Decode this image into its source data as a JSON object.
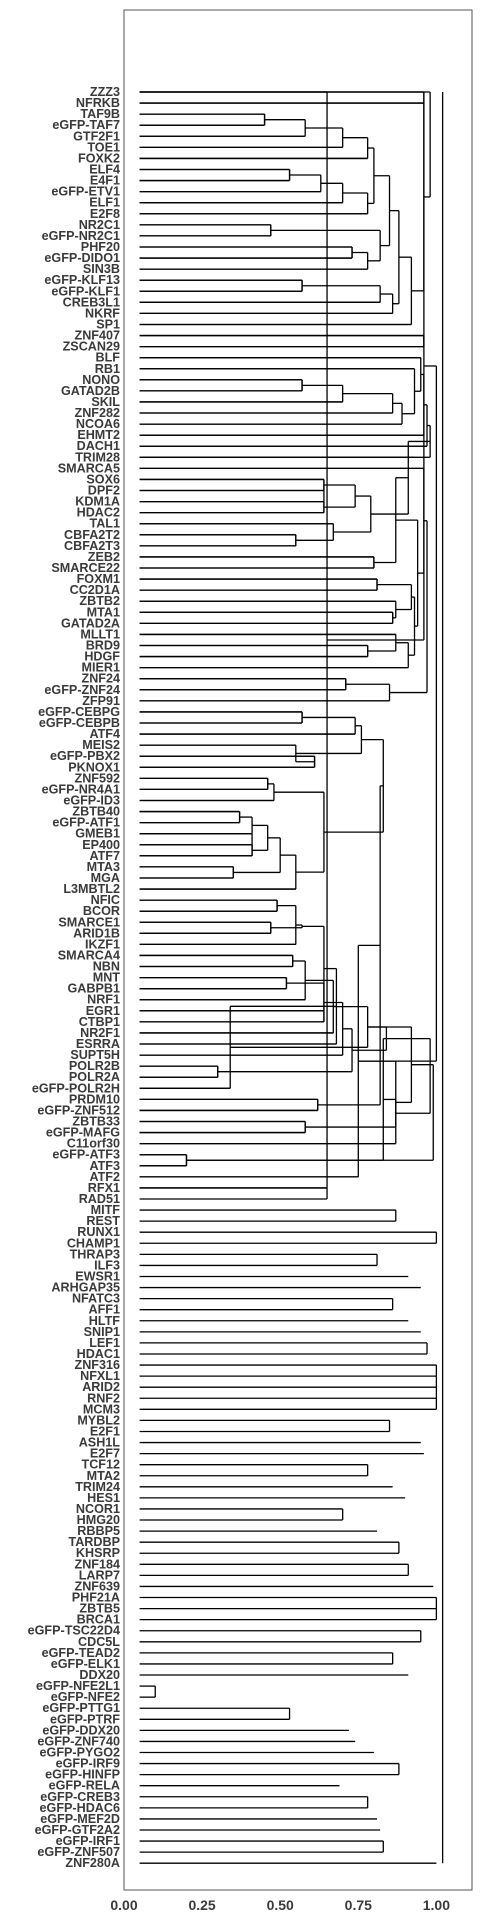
{
  "chart_data": {
    "type": "dendrogram",
    "orientation": "horizontal",
    "xlim": [
      0,
      1.05
    ],
    "x_ticks": [
      0.0,
      0.25,
      0.5,
      0.75,
      1.0
    ],
    "x_tick_labels": [
      "0.00",
      "0.25",
      "0.50",
      "0.75",
      "1.00"
    ],
    "grid": false,
    "leaves": [
      "ZZZ3",
      "NFRKB",
      "TAF9B",
      "eGFP-TAF7",
      "GTF2F1",
      "TOE1",
      "FOXK2",
      "ELF4",
      "E4F1",
      "eGFP-ETV1",
      "ELF1",
      "E2F8",
      "NR2C1",
      "eGFP-NR2C1",
      "PHF20",
      "eGFP-DIDO1",
      "SIN3B",
      "eGFP-KLF13",
      "eGFP-KLF1",
      "CREB3L1",
      "NKRF",
      "SP1",
      "ZNF407",
      "ZSCAN29",
      "BLF",
      "RB1",
      "NONO",
      "GATAD2B",
      "SKIL",
      "ZNF282",
      "NCOA6",
      "EHMT2",
      "DACH1",
      "TRIM28",
      "SMARCA5",
      "SOX6",
      "DPF2",
      "KDM1A",
      "HDAC2",
      "TAL1",
      "CBFA2T2",
      "CBFA2T3",
      "ZEB2",
      "SMARCE22",
      "FOXM1",
      "CC2D1A",
      "ZBTB2",
      "MTA1",
      "GATAD2A",
      "MLLT1",
      "BRD9",
      "HDGF",
      "MIER1",
      "ZNF24",
      "eGFP-ZNF24",
      "ZFP91",
      "eGFP-CEBPG",
      "eGFP-CEBPB",
      "ATF4",
      "MEIS2",
      "eGFP-PBX2",
      "PKNOX1",
      "ZNF592",
      "eGFP-NR4A1",
      "eGFP-ID3",
      "ZBTB40",
      "eGFP-ATF1",
      "GMEB1",
      "EP400",
      "ATF7",
      "MTA3",
      "MGA",
      "L3MBTL2",
      "NFIC",
      "BCOR",
      "SMARCE1",
      "ARID1B",
      "IKZF1",
      "SMARCA4",
      "NBN",
      "MNT",
      "GABPB1",
      "NRF1",
      "EGR1",
      "CTBP1",
      "NR2F1",
      "ESRRA",
      "SUPT5H",
      "POLR2B",
      "POLR2A",
      "eGFP-POLR2H",
      "PRDM10",
      "eGFP-ZNF512",
      "ZBTB33",
      "eGFP-MAFG",
      "C11orf30",
      "eGFP-ATF3",
      "ATF3",
      "ATF2",
      "RFX1",
      "RAD51",
      "MITF",
      "REST",
      "RUNX1",
      "CHAMP1",
      "THRAP3",
      "ILF3",
      "EWSR1",
      "ARHGAP35",
      "NFATC3",
      "AFF1",
      "HLTF",
      "SNIP1",
      "LEF1",
      "HDAC1",
      "ZNF316",
      "NFXL1",
      "ARID2",
      "RNF2",
      "MCM3",
      "MYBL2",
      "E2F1",
      "ASH1L",
      "E2F7",
      "TCF12",
      "MTA2",
      "TRIM24",
      "HES1",
      "NCOR1",
      "HMG20",
      "RBBP5",
      "TARDBP",
      "KHSRP",
      "ZNF184",
      "LARP7",
      "ZNF639",
      "PHF21A",
      "ZBTB5",
      "BRCA1",
      "eGFP-TSC22D4",
      "CDC5L",
      "eGFP-TEAD2",
      "eGFP-ELK1",
      "DDX20",
      "eGFP-NFE2L1",
      "eGFP-NFE2",
      "eGFP-PTTG1",
      "eGFP-PTRF",
      "eGFP-DDX20",
      "eGFP-ZNF740",
      "eGFP-PYGO2",
      "eGFP-IRF9",
      "eGFP-HINFP",
      "eGFP-RELA",
      "eGFP-CREB3",
      "eGFP-HDAC6",
      "eGFP-MEF2D",
      "eGFP-GTF2A2",
      "eGFP-IRF1",
      "eGFP-ZNF507",
      "ZNF280A"
    ],
    "merges": [
      [
        2,
        3,
        0.45
      ],
      [
        101,
        4,
        0.58
      ],
      [
        102,
        5,
        0.7
      ],
      [
        103,
        6,
        0.78
      ],
      [
        7,
        8,
        0.53
      ],
      [
        105,
        9,
        0.63
      ],
      [
        106,
        10,
        0.7
      ],
      [
        107,
        11,
        0.78
      ],
      [
        104,
        108,
        0.8
      ],
      [
        12,
        13,
        0.47
      ],
      [
        14,
        15,
        0.73
      ],
      [
        111,
        16,
        0.78
      ],
      [
        110,
        112,
        0.82
      ],
      [
        109,
        113,
        0.85
      ],
      [
        17,
        18,
        0.57
      ],
      [
        115,
        19,
        0.82
      ],
      [
        116,
        20,
        0.86
      ],
      [
        114,
        117,
        0.88
      ],
      [
        118,
        21,
        0.92
      ],
      [
        1,
        119,
        0.96
      ],
      [
        0,
        120,
        0.98
      ],
      [
        22,
        23,
        0.96
      ],
      [
        26,
        27,
        0.57
      ],
      [
        123,
        28,
        0.7
      ],
      [
        124,
        29,
        0.86
      ],
      [
        125,
        30,
        0.89
      ],
      [
        25,
        126,
        0.93
      ],
      [
        24,
        127,
        0.95
      ],
      [
        128,
        31,
        0.96
      ],
      [
        129,
        32,
        0.97
      ],
      [
        130,
        33,
        0.98
      ],
      [
        35,
        36,
        0.64
      ],
      [
        37,
        38,
        0.64
      ],
      [
        132,
        133,
        0.74
      ],
      [
        40,
        41,
        0.55
      ],
      [
        39,
        135,
        0.67
      ],
      [
        134,
        136,
        0.79
      ],
      [
        131,
        137,
        0.91
      ],
      [
        42,
        43,
        0.8
      ],
      [
        138,
        139,
        0.87
      ],
      [
        44,
        45,
        0.81
      ],
      [
        47,
        48,
        0.86
      ],
      [
        46,
        142,
        0.87
      ],
      [
        141,
        143,
        0.92
      ],
      [
        50,
        51,
        0.78
      ],
      [
        49,
        145,
        0.87
      ],
      [
        146,
        52,
        0.91
      ],
      [
        144,
        147,
        0.93
      ],
      [
        140,
        148,
        0.94
      ],
      [
        34,
        149,
        0.96
      ],
      [
        53,
        54,
        0.71
      ],
      [
        151,
        55,
        0.85
      ],
      [
        150,
        152,
        0.97
      ],
      [
        56,
        57,
        0.57
      ],
      [
        58,
        154,
        0.74
      ],
      [
        60,
        61,
        0.61
      ],
      [
        59,
        156,
        0.55
      ],
      [
        155,
        157,
        0.76
      ],
      [
        62,
        63,
        0.46
      ],
      [
        159,
        64,
        0.48
      ],
      [
        65,
        66,
        0.37
      ],
      [
        161,
        67,
        0.41
      ],
      [
        68,
        69,
        0.41
      ],
      [
        162,
        163,
        0.46
      ],
      [
        70,
        71,
        0.35
      ],
      [
        164,
        165,
        0.5
      ],
      [
        72,
        166,
        0.55
      ],
      [
        160,
        167,
        0.64
      ],
      [
        158,
        168,
        0.83
      ],
      [
        73,
        74,
        0.49
      ],
      [
        75,
        76,
        0.47
      ],
      [
        170,
        77,
        0.55
      ],
      [
        78,
        79,
        0.54
      ],
      [
        171,
        172,
        0.57
      ],
      [
        80,
        81,
        0.52
      ],
      [
        173,
        82,
        0.58
      ],
      [
        174,
        83,
        0.64
      ],
      [
        175,
        84,
        0.64
      ],
      [
        176,
        85,
        0.67
      ],
      [
        177,
        86,
        0.68
      ],
      [
        178,
        87,
        0.7
      ],
      [
        88,
        89,
        0.3
      ],
      [
        180,
        90,
        0.34
      ],
      [
        91,
        92,
        0.62
      ],
      [
        181,
        182,
        0.73
      ],
      [
        179,
        183,
        0.78
      ],
      [
        169,
        184,
        0.82
      ],
      [
        185,
        186,
        0.84
      ],
      [
        96,
        97,
        0.2
      ],
      [
        187,
        98,
        0.75
      ],
      [
        93,
        94,
        0.58
      ],
      [
        188,
        189,
        0.83
      ],
      [
        190,
        95,
        0.87
      ],
      [
        99,
        100,
        0.65
      ],
      [
        191,
        192,
        0.87
      ],
      [
        193,
        186,
        0.92
      ],
      [
        194,
        100,
        0.96
      ],
      [
        195,
        188,
        0.98
      ],
      [
        196,
        189,
        0.99
      ],
      [
        197,
        190,
        1.0
      ]
    ],
    "dendrogram_heights": {
      "ZZZ3": 0.96,
      "NFRKB": 0.96,
      "TAF9B": 0.45,
      "eGFP-TAF7": 0.45,
      "GTF2F1": 0.58,
      "TOE1": 0.7,
      "FOXK2": 0.78,
      "ELF4": 0.53,
      "E4F1": 0.53,
      "eGFP-ETV1": 0.63,
      "ELF1": 0.7,
      "E2F8": 0.78,
      "NR2C1": 0.47,
      "eGFP-NR2C1": 0.47,
      "PHF20": 0.73,
      "eGFP-DIDO1": 0.73,
      "SIN3B": 0.78,
      "eGFP-KLF13": 0.57,
      "eGFP-KLF1": 0.57,
      "CREB3L1": 0.82,
      "NKRF": 0.86,
      "SP1": 0.92,
      "ZNF407": 0.96,
      "ZSCAN29": 0.96,
      "BLF": 0.95,
      "RB1": 0.93,
      "NONO": 0.57,
      "GATAD2B": 0.57,
      "SKIL": 0.7,
      "ZNF282": 0.86,
      "NCOA6": 0.89,
      "EHMT2": 0.96,
      "DACH1": 0.97,
      "TRIM28": 0.93,
      "SMARCA5": 0.96,
      "SOX6": 0.64,
      "DPF2": 0.64,
      "KDM1A": 0.64,
      "HDAC2": 0.64,
      "TAL1": 0.67,
      "CBFA2T2": 0.55,
      "CBFA2T3": 0.55,
      "ZEB2": 0.8,
      "SMARCE22": 0.8,
      "FOXM1": 0.81,
      "CC2D1A": 0.81,
      "ZBTB2": 0.87,
      "MTA1": 0.86,
      "GATAD2A": 0.86,
      "MLLT1": 0.87,
      "BRD9": 0.78,
      "HDGF": 0.78,
      "MIER1": 0.91,
      "ZNF24": 0.71,
      "eGFP-ZNF24": 0.71,
      "ZFP91": 0.85,
      "eGFP-CEBPG": 0.57,
      "eGFP-CEBPB": 0.57,
      "ATF4": 0.74,
      "MEIS2": 0.55,
      "eGFP-PBX2": 0.61,
      "PKNOX1": 0.61,
      "ZNF592": 0.46,
      "eGFP-NR4A1": 0.46,
      "eGFP-ID3": 0.48,
      "ZBTB40": 0.37,
      "eGFP-ATF1": 0.37,
      "GMEB1": 0.41,
      "EP400": 0.41,
      "ATF7": 0.41,
      "MTA3": 0.35,
      "MGA": 0.35,
      "L3MBTL2": 0.55,
      "NFIC": 0.49,
      "BCOR": 0.49,
      "SMARCE1": 0.47,
      "ARID1B": 0.47,
      "IKZF1": 0.55,
      "SMARCA4": 0.54,
      "NBN": 0.54,
      "MNT": 0.52,
      "GABPB1": 0.52,
      "NRF1": 0.58,
      "EGR1": 0.64,
      "CTBP1": 0.64,
      "NR2F1": 0.67,
      "ESRRA": 0.68,
      "SUPT5H": 0.7,
      "POLR2B": 0.3,
      "POLR2A": 0.3,
      "eGFP-POLR2H": 0.34,
      "PRDM10": 0.62,
      "eGFP-ZNF512": 0.62,
      "ZBTB33": 0.58,
      "eGFP-MAFG": 0.58,
      "C11orf30": 0.87,
      "eGFP-ATF3": 0.2,
      "ATF3": 0.2,
      "ATF2": 0.75,
      "RFX1": 0.65,
      "RAD51": 0.65,
      "MITF": 0.87,
      "REST": 0.87,
      "RUNX1": 1.0,
      "CHAMP1": 1.0,
      "THRAP3": 0.81,
      "ILF3": 0.81,
      "EWSR1": 0.91,
      "ARHGAP35": 0.95,
      "NFATC3": 0.86,
      "AFF1": 0.86,
      "HLTF": 0.91,
      "SNIP1": 0.95,
      "LEF1": 0.97,
      "HDAC1": 0.97,
      "ZNF316": 1.0,
      "NFXL1": 1.0,
      "ARID2": 1.0,
      "RNF2": 1.0,
      "MCM3": 1.0,
      "MYBL2": 0.85,
      "E2F1": 0.85,
      "ASH1L": 0.95,
      "E2F7": 0.96,
      "TCF12": 0.78,
      "MTA2": 0.78,
      "TRIM24": 0.86,
      "HES1": 0.9,
      "NCOR1": 0.7,
      "HMG20": 0.7,
      "RBBP5": 0.81,
      "TARDBP": 0.88,
      "KHSRP": 0.88,
      "ZNF184": 0.91,
      "LARP7": 0.91,
      "ZNF639": 0.99,
      "PHF21A": 1.0,
      "ZBTB5": 1.0,
      "BRCA1": 1.0,
      "eGFP-TSC22D4": 0.95,
      "CDC5L": 0.95,
      "eGFP-TEAD2": 0.86,
      "eGFP-ELK1": 0.86,
      "DDX20": 0.91,
      "eGFP-NFE2L1": 0.1,
      "eGFP-NFE2": 0.1,
      "eGFP-PTTG1": 0.53,
      "eGFP-PTRF": 0.53,
      "eGFP-DDX20": 0.72,
      "eGFP-ZNF740": 0.74,
      "eGFP-PYGO2": 0.8,
      "eGFP-IRF9": 0.88,
      "eGFP-HINFP": 0.88,
      "eGFP-RELA": 0.69,
      "eGFP-CREB3": 0.78,
      "eGFP-HDAC6": 0.78,
      "eGFP-MEF2D": 0.81,
      "eGFP-GTF2A2": 0.82,
      "eGFP-IRF1": 0.83,
      "eGFP-ZNF507": 0.83,
      "ZNF280A": 1.0
    }
  }
}
